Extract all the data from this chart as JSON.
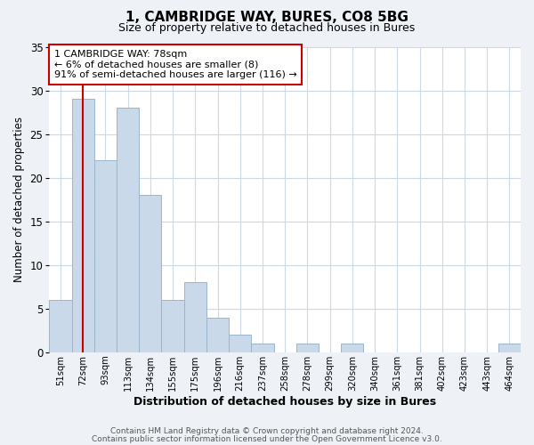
{
  "title": "1, CAMBRIDGE WAY, BURES, CO8 5BG",
  "subtitle": "Size of property relative to detached houses in Bures",
  "xlabel": "Distribution of detached houses by size in Bures",
  "ylabel": "Number of detached properties",
  "bar_labels": [
    "51sqm",
    "72sqm",
    "93sqm",
    "113sqm",
    "134sqm",
    "155sqm",
    "175sqm",
    "196sqm",
    "216sqm",
    "237sqm",
    "258sqm",
    "278sqm",
    "299sqm",
    "320sqm",
    "340sqm",
    "361sqm",
    "381sqm",
    "402sqm",
    "423sqm",
    "443sqm",
    "464sqm"
  ],
  "bar_values": [
    6,
    29,
    22,
    28,
    18,
    6,
    8,
    4,
    2,
    1,
    0,
    1,
    0,
    1,
    0,
    0,
    0,
    0,
    0,
    0,
    1
  ],
  "bar_color": "#c9d9ea",
  "bar_edgecolor": "#9ab5cc",
  "ylim": [
    0,
    35
  ],
  "yticks": [
    0,
    5,
    10,
    15,
    20,
    25,
    30,
    35
  ],
  "vline_x": 1.0,
  "vline_color": "#cc0000",
  "annotation_line1": "1 CAMBRIDGE WAY: 78sqm",
  "annotation_line2": "← 6% of detached houses are smaller (8)",
  "annotation_line3": "91% of semi-detached houses are larger (116) →",
  "annotation_box_color": "#ffffff",
  "annotation_box_edgecolor": "#cc0000",
  "footer1": "Contains HM Land Registry data © Crown copyright and database right 2024.",
  "footer2": "Contains public sector information licensed under the Open Government Licence v3.0.",
  "bg_color": "#eef2f7",
  "plot_bg_color": "#ffffff",
  "grid_color": "#cdd8e5"
}
